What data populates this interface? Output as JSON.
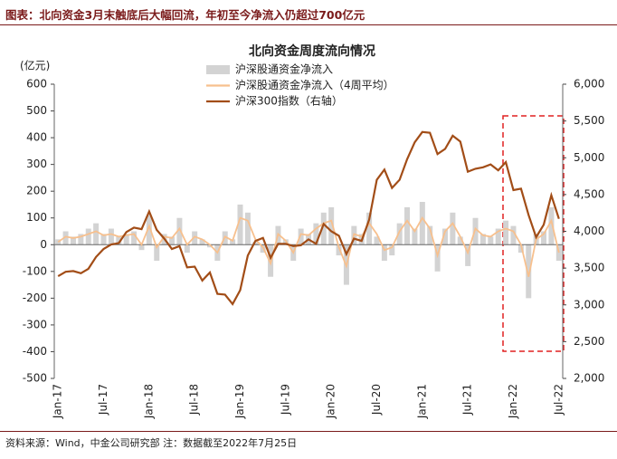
{
  "header_title": "图表：北向资金3月末触底后大幅回流，年初至今净流入仍超过700亿元",
  "source": "资料来源：Wind，中金公司研究部   注：数据截至2022年7月25日",
  "chart_data": {
    "type": "bar-line",
    "title": "北向资金周度流向情况",
    "y_label": "(亿元)",
    "categories": [
      "Jan-17",
      null,
      null,
      null,
      null,
      null,
      "Jul-17",
      null,
      null,
      null,
      null,
      null,
      "Jan-18",
      null,
      null,
      null,
      null,
      null,
      "Jul-18",
      null,
      null,
      null,
      null,
      null,
      "Jan-19",
      null,
      null,
      null,
      null,
      null,
      "Jul-19",
      null,
      null,
      null,
      null,
      null,
      "Jan-20",
      null,
      null,
      null,
      null,
      null,
      "Jul-20",
      null,
      null,
      null,
      null,
      null,
      "Jan-21",
      null,
      null,
      null,
      null,
      null,
      "Jul-21",
      null,
      null,
      null,
      null,
      null,
      "Jan-22",
      null,
      null,
      null,
      null,
      null,
      "Jul-22"
    ],
    "series": [
      {
        "name": "沪深股通资金净流入",
        "kind": "bar",
        "color": "#d3d3d3",
        "values": [
          20,
          50,
          30,
          40,
          60,
          80,
          40,
          60,
          30,
          40,
          50,
          -20,
          110,
          -60,
          40,
          30,
          100,
          -30,
          50,
          20,
          -10,
          -60,
          50,
          20,
          150,
          120,
          10,
          -30,
          -120,
          70,
          20,
          -60,
          60,
          40,
          80,
          120,
          140,
          -40,
          -150,
          70,
          40,
          120,
          30,
          -60,
          -40,
          80,
          140,
          60,
          160,
          70,
          -100,
          60,
          120,
          30,
          -80,
          100,
          40,
          30,
          60,
          90,
          70,
          -30,
          -200,
          40,
          50,
          140,
          -60
        ]
      },
      {
        "name": "沪深股通资金净流入（4周平均）",
        "kind": "line",
        "color": "#f7c08e",
        "values": [
          10,
          30,
          25,
          30,
          40,
          50,
          35,
          40,
          30,
          35,
          40,
          0,
          70,
          -10,
          30,
          25,
          60,
          0,
          30,
          20,
          0,
          -30,
          30,
          15,
          100,
          90,
          20,
          -10,
          -70,
          40,
          15,
          -30,
          40,
          35,
          60,
          80,
          90,
          -10,
          -80,
          40,
          30,
          80,
          40,
          -20,
          -10,
          50,
          90,
          50,
          100,
          60,
          -40,
          50,
          80,
          30,
          -30,
          60,
          35,
          30,
          50,
          60,
          50,
          0,
          -120,
          20,
          40,
          90,
          -30
        ]
      },
      {
        "name": "沪深300指数（右轴）",
        "kind": "line",
        "axis": "y2",
        "color": "#a24d17",
        "values": [
          3390,
          3450,
          3460,
          3430,
          3490,
          3650,
          3760,
          3820,
          3840,
          3990,
          4050,
          4030,
          4270,
          4020,
          3900,
          3760,
          3800,
          3510,
          3520,
          3330,
          3440,
          3150,
          3140,
          3010,
          3200,
          3670,
          3870,
          3910,
          3640,
          3830,
          3830,
          3800,
          3810,
          3890,
          3830,
          4100,
          4000,
          3940,
          3690,
          3900,
          3870,
          4160,
          4700,
          4840,
          4590,
          4700,
          4980,
          5210,
          5350,
          5340,
          5050,
          5120,
          5300,
          5220,
          4810,
          4850,
          4870,
          4910,
          4830,
          4940,
          4560,
          4580,
          4220,
          3920,
          4090,
          4490,
          4170
        ]
      }
    ],
    "ylim": [
      -500,
      600
    ],
    "yticks": [
      -500,
      -400,
      -300,
      -200,
      -100,
      0,
      100,
      200,
      300,
      400,
      500,
      600
    ],
    "y2lim": [
      2000,
      6000
    ],
    "y2ticks": [
      {
        "value": 2000,
        "label": "2,000"
      },
      {
        "value": 2500,
        "label": "2,500"
      },
      {
        "value": 3000,
        "label": "3,000"
      },
      {
        "value": 3500,
        "label": "3,500"
      },
      {
        "value": 4000,
        "label": "4,000"
      },
      {
        "value": 4500,
        "label": "4,500"
      },
      {
        "value": 5000,
        "label": "5,000"
      },
      {
        "value": 5500,
        "label": "5,500"
      },
      {
        "value": 6000,
        "label": "6,000"
      }
    ]
  }
}
